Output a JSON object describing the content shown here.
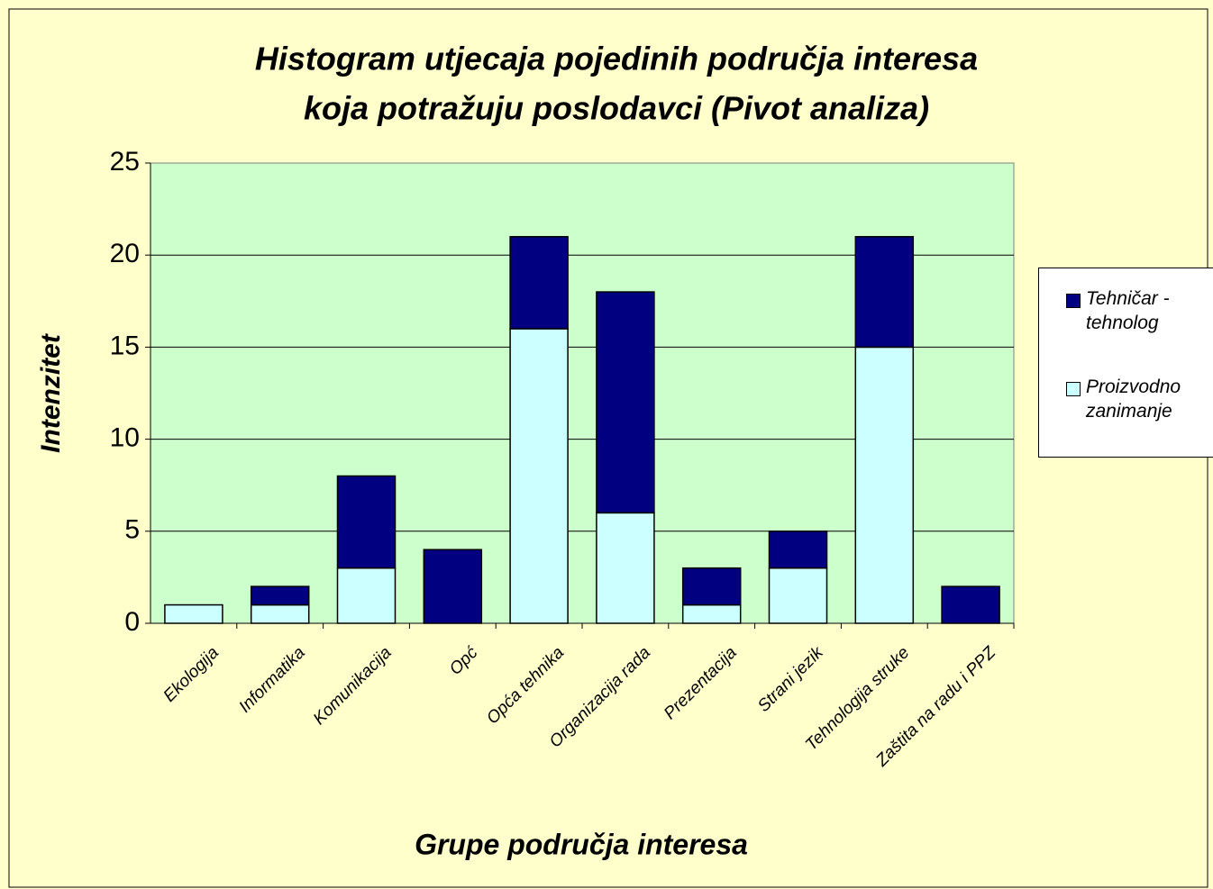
{
  "chart_data": {
    "type": "stacked-bar",
    "title": [
      "Histogram utjecaja pojedinih područja interesa",
      "koja potražuju poslodavci (Pivot analiza)"
    ],
    "x_label": "Grupe područja interesa",
    "y_label": "Intenzitet",
    "categories": [
      "Ekologija",
      "Informatika",
      "Komunikacija",
      "Opć",
      "Opća tehnika",
      "Organizacija rada",
      "Prezentacija",
      "Strani jezik",
      "Tehnologija struke",
      "Zaštita na radu i PPZ"
    ],
    "series": [
      {
        "name": "Proizvodno zanimanje",
        "color": "#ccffff",
        "values": [
          1,
          1,
          3,
          0,
          16,
          6,
          1,
          3,
          15,
          0
        ]
      },
      {
        "name": "Tehničar - tehnolog",
        "color": "#000080",
        "values": [
          0,
          1,
          5,
          4,
          5,
          12,
          2,
          2,
          6,
          2
        ]
      }
    ],
    "ylim": [
      0,
      25
    ],
    "yticks": [
      0,
      5,
      10,
      15,
      20,
      25
    ],
    "grid": true,
    "legend": "right"
  }
}
